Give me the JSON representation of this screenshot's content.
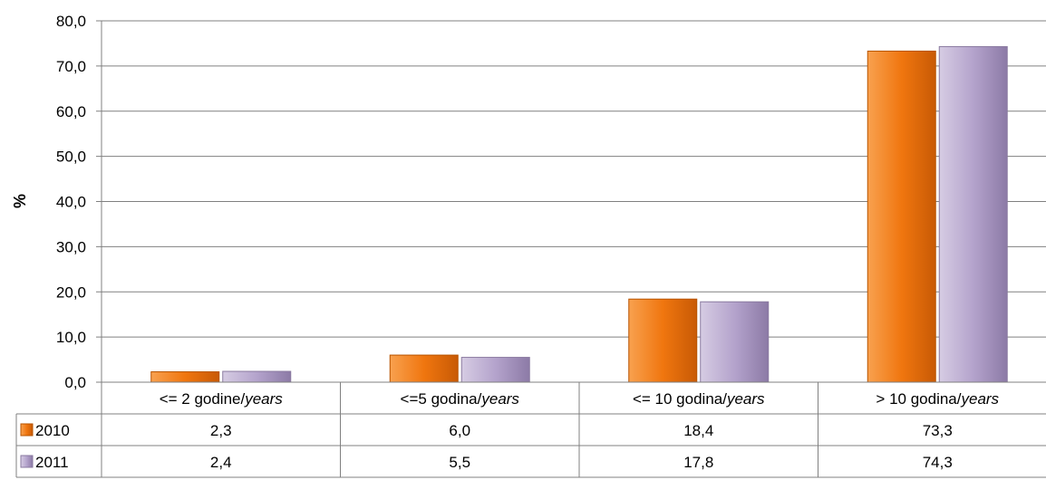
{
  "chart_data": {
    "type": "bar",
    "ylabel": "%",
    "ylim": [
      0,
      80
    ],
    "yticks": [
      "0,0",
      "10,0",
      "20,0",
      "30,0",
      "40,0",
      "50,0",
      "60,0",
      "70,0",
      "80,0"
    ],
    "categories": [
      {
        "main": "<= 2 godine/",
        "italic": "years"
      },
      {
        "main": "<=5 godina/",
        "italic": "years"
      },
      {
        "main": "<= 10 godina/",
        "italic": "years"
      },
      {
        "main": "> 10 godina/",
        "italic": "years"
      }
    ],
    "series": [
      {
        "name": "2010",
        "color": "#F0760F",
        "values": [
          2.3,
          6.0,
          18.4,
          73.3
        ],
        "labels": [
          "2,3",
          "6,0",
          "18,4",
          "73,3"
        ]
      },
      {
        "name": "2011",
        "color": "#B4A3CC",
        "values": [
          2.4,
          5.5,
          17.8,
          74.3
        ],
        "labels": [
          "2,4",
          "5,5",
          "17,8",
          "74,3"
        ]
      }
    ],
    "grid": true,
    "legend": "data-table"
  }
}
